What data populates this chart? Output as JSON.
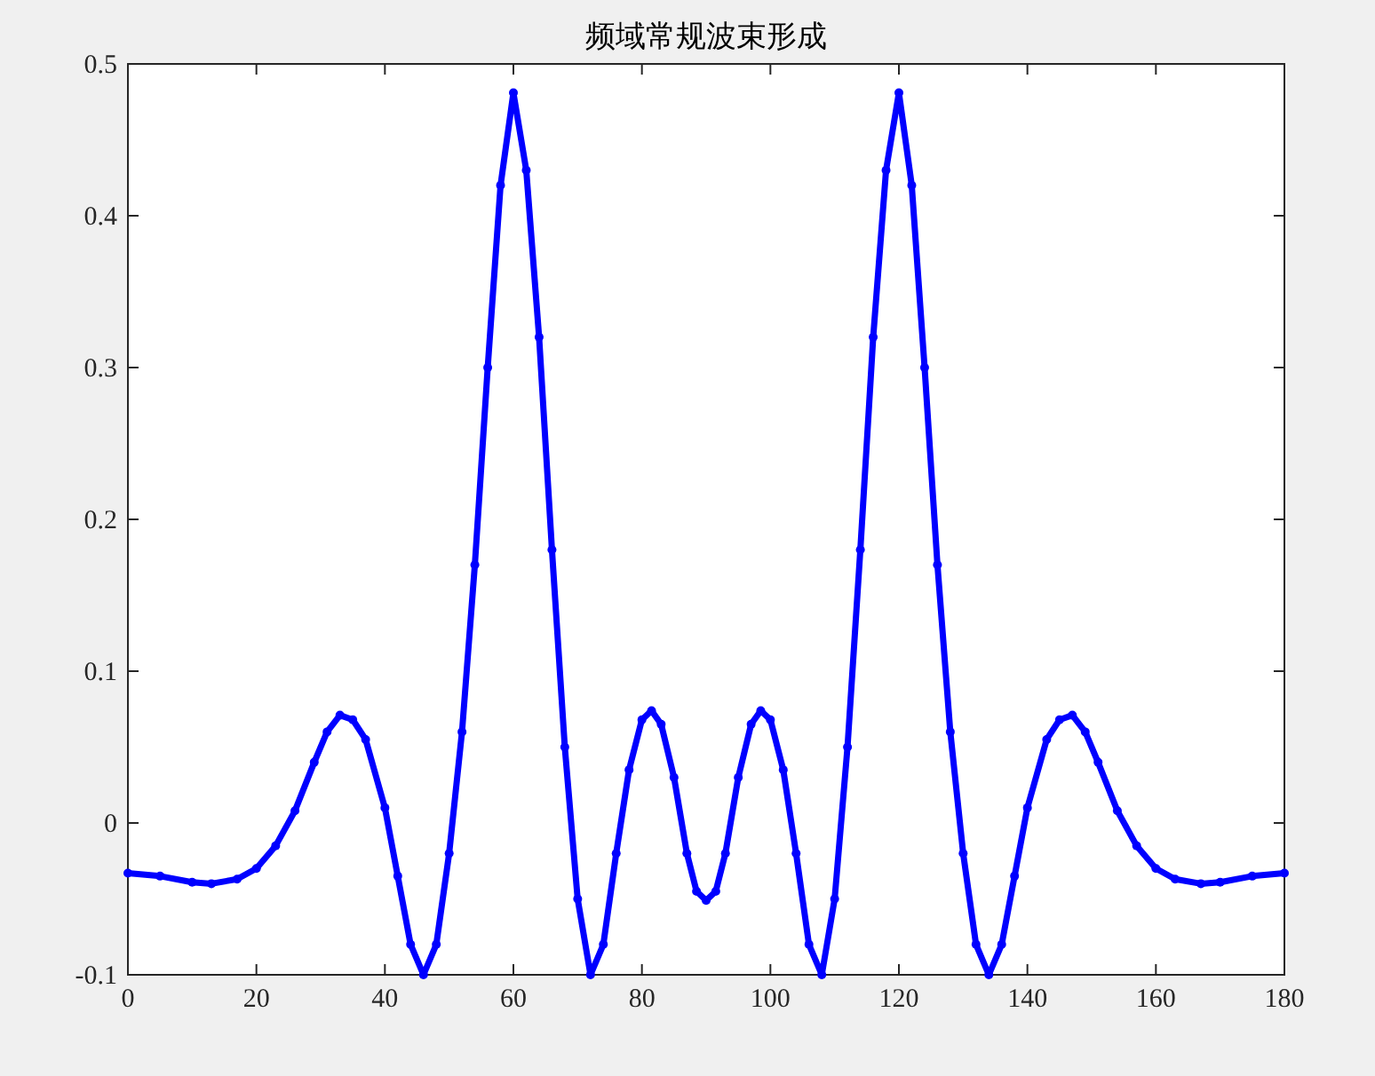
{
  "chart_data": {
    "type": "line",
    "title": "频域常规波束形成",
    "x": [
      0,
      5,
      10,
      13,
      17,
      20,
      23,
      26,
      29,
      31,
      33,
      35,
      37,
      40,
      42,
      44,
      46,
      48,
      50,
      52,
      54,
      56,
      58,
      60,
      62,
      64,
      66,
      68,
      70,
      72,
      74,
      76,
      78,
      80,
      81.5,
      83,
      85,
      87,
      88.5,
      90,
      91.5,
      93,
      95,
      97,
      98.5,
      100,
      102,
      104,
      106,
      108,
      110,
      112,
      114,
      116,
      118,
      120,
      122,
      124,
      126,
      128,
      130,
      132,
      134,
      136,
      138,
      140,
      143,
      145,
      147,
      149,
      151,
      154,
      157,
      160,
      163,
      167,
      170,
      175,
      180
    ],
    "series": [
      {
        "color": "#0000ff",
        "values": [
          -0.033,
          -0.035,
          -0.039,
          -0.04,
          -0.037,
          -0.03,
          -0.015,
          0.008,
          0.04,
          0.06,
          0.071,
          0.068,
          0.055,
          0.01,
          -0.035,
          -0.08,
          -0.1,
          -0.08,
          -0.02,
          0.06,
          0.17,
          0.3,
          0.42,
          0.481,
          0.43,
          0.32,
          0.18,
          0.05,
          -0.05,
          -0.1,
          -0.08,
          -0.02,
          0.035,
          0.068,
          0.074,
          0.065,
          0.03,
          -0.02,
          -0.045,
          -0.051,
          -0.045,
          -0.02,
          0.03,
          0.065,
          0.074,
          0.068,
          0.035,
          -0.02,
          -0.08,
          -0.1,
          -0.05,
          0.05,
          0.18,
          0.32,
          0.43,
          0.481,
          0.42,
          0.3,
          0.17,
          0.06,
          -0.02,
          -0.08,
          -0.1,
          -0.08,
          -0.035,
          0.01,
          0.055,
          0.068,
          0.071,
          0.06,
          0.04,
          0.008,
          -0.015,
          -0.03,
          -0.037,
          -0.04,
          -0.039,
          -0.035,
          -0.033
        ]
      }
    ],
    "xlim": [
      0,
      180
    ],
    "xticks": [
      0,
      20,
      40,
      60,
      80,
      100,
      120,
      140,
      160,
      180
    ],
    "ylim": [
      -0.1,
      0.5
    ],
    "yticks": [
      -0.1,
      0,
      0.1,
      0.2,
      0.3,
      0.4,
      0.5
    ],
    "marker": "circle",
    "line_style": "solid"
  }
}
